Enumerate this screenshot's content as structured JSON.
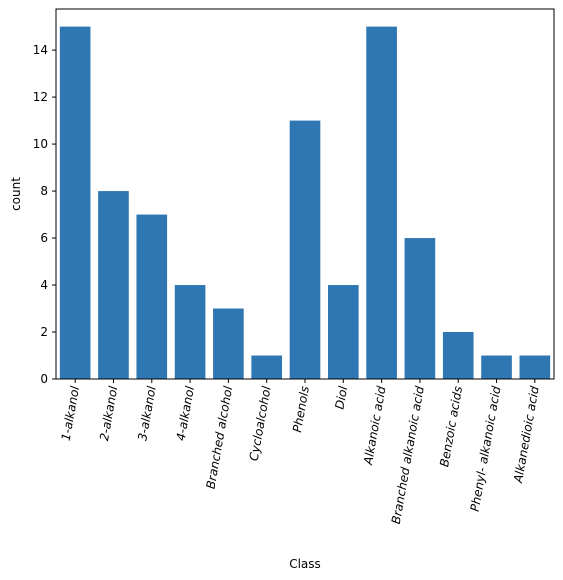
{
  "chart_data": {
    "type": "bar",
    "xlabel": "Class",
    "ylabel": "count",
    "categories": [
      "1-alkanol",
      "2-alkanol",
      "3-alkanol",
      "4-alkanol",
      "Branched alcohol",
      "Cycloalcohol",
      "Phenols",
      "Diol",
      "Alkanoic acid",
      "Branched alkanoic acid",
      "Benzoic acids",
      "Phenyl- alkanoic acid",
      "Alkanedioic acid"
    ],
    "values": [
      15,
      8,
      7,
      4,
      3,
      1,
      11,
      4,
      15,
      6,
      2,
      1,
      1
    ],
    "ylim": [
      0,
      15.75
    ],
    "yticks": [
      "0",
      "2",
      "4",
      "6",
      "8",
      "10",
      "12",
      "14"
    ],
    "bar_color": "#2f77b3",
    "grid": false,
    "legend": "none"
  }
}
